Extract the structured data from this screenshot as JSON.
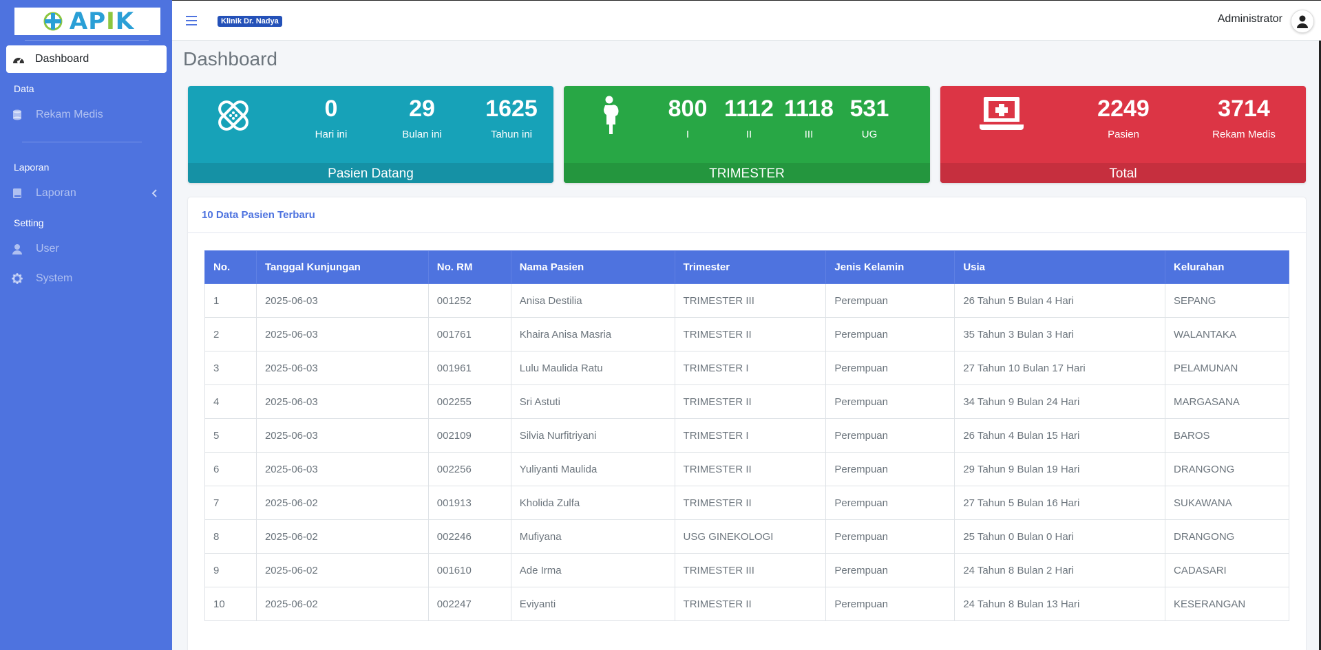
{
  "sidebar": {
    "logo_text_a": "AP",
    "logo_text_i": "I",
    "logo_text_k": "K",
    "active_item": "Dashboard",
    "sections": {
      "data": "Data",
      "laporan": "Laporan",
      "setting": "Setting"
    },
    "items": {
      "rekam_medis": "Rekam Medis",
      "laporan": "Laporan",
      "user": "User",
      "system": "System"
    }
  },
  "header": {
    "clinic": "Klinik Dr. Nadya",
    "user": "Administrator"
  },
  "page_title": "Dashboard",
  "boxes": {
    "pasien_datang": {
      "footer": "Pasien Datang",
      "stats": [
        {
          "value": "0",
          "label": "Hari ini"
        },
        {
          "value": "29",
          "label": "Bulan ini"
        },
        {
          "value": "1625",
          "label": "Tahun ini"
        }
      ]
    },
    "trimester": {
      "footer": "TRIMESTER",
      "stats": [
        {
          "value": "800",
          "label": "I"
        },
        {
          "value": "1112",
          "label": "II"
        },
        {
          "value": "1118",
          "label": "III"
        },
        {
          "value": "531",
          "label": "UG"
        }
      ]
    },
    "total": {
      "footer": "Total",
      "stats": [
        {
          "value": "2249",
          "label": "Pasien"
        },
        {
          "value": "3714",
          "label": "Rekam Medis"
        }
      ]
    }
  },
  "colors": {
    "sidebar": "#4e73df",
    "cyan": "#17a2b8",
    "green": "#28a745",
    "red": "#dc3545"
  },
  "table": {
    "title": "10 Data Pasien Terbaru",
    "columns": [
      "No.",
      "Tanggal Kunjungan",
      "No. RM",
      "Nama Pasien",
      "Trimester",
      "Jenis Kelamin",
      "Usia",
      "Kelurahan"
    ],
    "rows": [
      [
        "1",
        "2025-06-03",
        "001252",
        "Anisa Destilia",
        "TRIMESTER III",
        "Perempuan",
        "26 Tahun 5 Bulan 4 Hari",
        "SEPANG"
      ],
      [
        "2",
        "2025-06-03",
        "001761",
        "Khaira Anisa Masria",
        "TRIMESTER II",
        "Perempuan",
        "35 Tahun 3 Bulan 3 Hari",
        "WALANTAKA"
      ],
      [
        "3",
        "2025-06-03",
        "001961",
        "Lulu Maulida Ratu",
        "TRIMESTER I",
        "Perempuan",
        "27 Tahun 10 Bulan 17 Hari",
        "PELAMUNAN"
      ],
      [
        "4",
        "2025-06-03",
        "002255",
        "Sri Astuti",
        "TRIMESTER II",
        "Perempuan",
        "34 Tahun 9 Bulan 24 Hari",
        "MARGASANA"
      ],
      [
        "5",
        "2025-06-03",
        "002109",
        "Silvia Nurfitriyani",
        "TRIMESTER I",
        "Perempuan",
        "26 Tahun 4 Bulan 15 Hari",
        "BAROS"
      ],
      [
        "6",
        "2025-06-03",
        "002256",
        "Yuliyanti Maulida",
        "TRIMESTER II",
        "Perempuan",
        "29 Tahun 9 Bulan 19 Hari",
        "DRANGONG"
      ],
      [
        "7",
        "2025-06-02",
        "001913",
        "Kholida Zulfa",
        "TRIMESTER II",
        "Perempuan",
        "27 Tahun 5 Bulan 16 Hari",
        "SUKAWANA"
      ],
      [
        "8",
        "2025-06-02",
        "002246",
        "Mufiyana",
        "USG GINEKOLOGI",
        "Perempuan",
        "25 Tahun 0 Bulan 0 Hari",
        "DRANGONG"
      ],
      [
        "9",
        "2025-06-02",
        "001610",
        "Ade Irma",
        "TRIMESTER III",
        "Perempuan",
        "24 Tahun 8 Bulan 2 Hari",
        "CADASARI"
      ],
      [
        "10",
        "2025-06-02",
        "002247",
        "Eviyanti",
        "TRIMESTER II",
        "Perempuan",
        "24 Tahun 8 Bulan 13 Hari",
        "KESERANGAN"
      ]
    ]
  }
}
